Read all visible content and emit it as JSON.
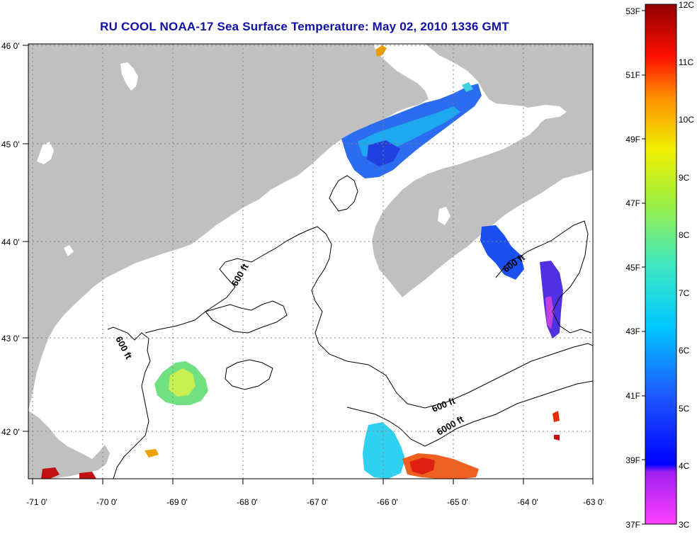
{
  "title": "RU COOL  NOAA-17  Sea Surface Temperature:  May 02, 2010 1336 GMT",
  "map": {
    "lon_ticks": [
      "-71 0'",
      "-70 0'",
      "-69 0'",
      "-68 0'",
      "-67 0'",
      "-66 0'",
      "-65 0'",
      "-64 0'",
      "-63 0'"
    ],
    "lat_ticks": [
      "46 0'",
      "45 0'",
      "44 0'",
      "43 0'",
      "42 0'"
    ],
    "contour_labels": [
      "600 ft",
      "600 ft",
      "600 ft",
      "600 ft",
      "6000 ft"
    ],
    "colors": {
      "land": "#c0c0c0",
      "ocean": "#ffffff",
      "grid": "#888888",
      "title": "#1010a8"
    }
  },
  "colorbar": {
    "f_labels": [
      "53F",
      "51F",
      "49F",
      "47F",
      "45F",
      "43F",
      "41F",
      "39F",
      "37F"
    ],
    "c_labels": [
      "12C",
      "11C",
      "10C",
      "9C",
      "8C",
      "7C",
      "6C",
      "5C",
      "4C",
      "3C"
    ]
  }
}
